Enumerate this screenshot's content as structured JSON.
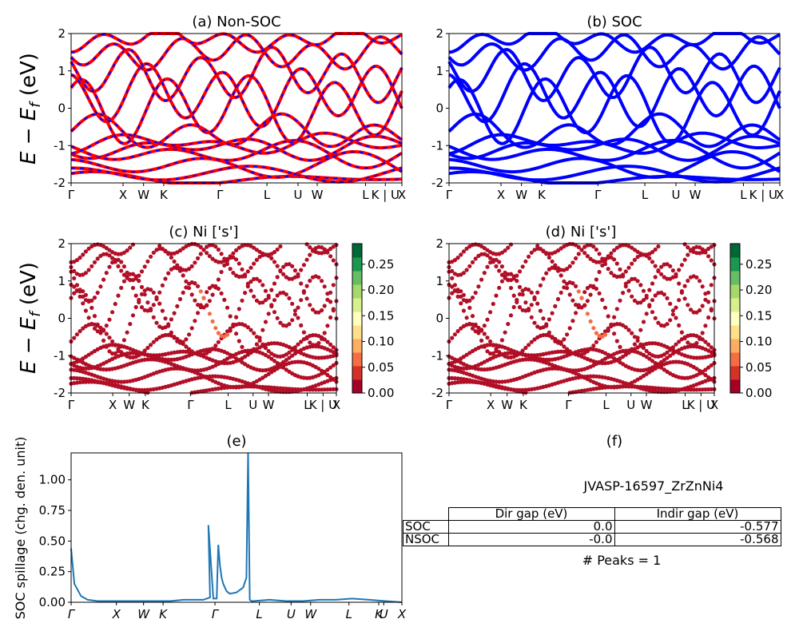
{
  "chart_data": [
    {
      "type": "line",
      "title": "(a) Non-SOC",
      "ylabel": "E - Ef (eV)",
      "ylim": [
        -2,
        2
      ],
      "yticks": [
        "-2",
        "-1",
        "0",
        "1",
        "2"
      ],
      "xticks": [
        "Γ",
        "X",
        "W",
        "K",
        "Γ",
        "L",
        "U",
        "W",
        "L",
        "K | U",
        "X"
      ],
      "series": [
        {
          "color": "#ff0000",
          "style": "solid"
        },
        {
          "color": "#0000ff",
          "style": "dashed"
        }
      ]
    },
    {
      "type": "line",
      "title": "(b) SOC",
      "ylim": [
        -2,
        2
      ],
      "yticks": [
        "-2",
        "-1",
        "0",
        "1",
        "2"
      ],
      "xticks": [
        "Γ",
        "X",
        "W",
        "K",
        "Γ",
        "L",
        "U",
        "W",
        "L",
        "K | U",
        "X"
      ],
      "series": [
        {
          "color": "#0000ff",
          "style": "solid"
        }
      ]
    },
    {
      "type": "scatter",
      "title": "(c)  Ni ['s']",
      "ylabel": "E - Ef (eV)",
      "ylim": [
        -2,
        2
      ],
      "yticks": [
        "-2",
        "-1",
        "0",
        "1",
        "2"
      ],
      "xticks": [
        "Γ",
        "X",
        "W",
        "K",
        "Γ",
        "L",
        "U",
        "W",
        "L",
        "K | U",
        "X"
      ],
      "colorbar": {
        "min": 0.0,
        "max": 0.29,
        "ticks": [
          "0.00",
          "0.05",
          "0.10",
          "0.15",
          "0.20",
          "0.25"
        ],
        "colormap": "RdYlGn"
      }
    },
    {
      "type": "scatter",
      "title": "(d) Ni ['s']",
      "ylim": [
        -2,
        2
      ],
      "yticks": [
        "-2",
        "-1",
        "0",
        "1",
        "2"
      ],
      "xticks": [
        "Γ",
        "X",
        "W",
        "K",
        "Γ",
        "L",
        "U",
        "W",
        "L",
        "K | U",
        "X"
      ],
      "colorbar": {
        "min": 0.0,
        "max": 0.29,
        "ticks": [
          "0.00",
          "0.05",
          "0.10",
          "0.15",
          "0.20",
          "0.25"
        ],
        "colormap": "RdYlGn"
      }
    },
    {
      "type": "line",
      "title": "(e)",
      "ylabel": "SOC spillage (chg. den. unit)",
      "ylim": [
        0,
        1.22
      ],
      "yticks": [
        "0.00",
        "0.25",
        "0.50",
        "0.75",
        "1.00"
      ],
      "xticks": [
        "Γ",
        "X",
        "W",
        "K",
        "Γ",
        "L",
        "U",
        "W",
        "L",
        "K",
        "U",
        "X"
      ],
      "series": [
        {
          "color": "#1f77b4",
          "x": [
            0,
            0.01,
            0.03,
            0.05,
            0.08,
            0.12,
            0.2,
            0.3,
            0.34,
            0.4,
            0.42,
            0.415,
            0.43,
            0.44,
            0.445,
            0.45,
            0.455,
            0.46,
            0.465,
            0.47,
            0.48,
            0.5,
            0.52,
            0.53,
            0.535,
            0.54,
            0.545,
            0.55,
            0.6,
            0.65,
            0.7,
            0.75,
            0.8,
            0.85,
            0.9,
            0.95,
            1.0
          ],
          "y": [
            0.44,
            0.15,
            0.05,
            0.02,
            0.01,
            0.01,
            0.01,
            0.01,
            0.02,
            0.02,
            0.04,
            0.63,
            0.03,
            0.03,
            0.47,
            0.3,
            0.2,
            0.15,
            0.12,
            0.09,
            0.07,
            0.08,
            0.12,
            0.2,
            1.22,
            0.02,
            0.01,
            0.01,
            0.02,
            0.01,
            0.01,
            0.02,
            0.02,
            0.03,
            0.02,
            0.01,
            0.0
          ]
        }
      ]
    }
  ],
  "panel_f": {
    "title": "(f)",
    "material": "JVASP-16597_ZrZnNi4",
    "table": {
      "headers": [
        "Dir gap (eV)",
        "Indir gap (eV)"
      ],
      "rows": [
        {
          "label": "SOC",
          "dir": "0.0",
          "indir": "-0.577"
        },
        {
          "label": "NSOC",
          "dir": "-0.0",
          "indir": "-0.568"
        }
      ]
    },
    "peaks": "# Peaks = 1"
  }
}
